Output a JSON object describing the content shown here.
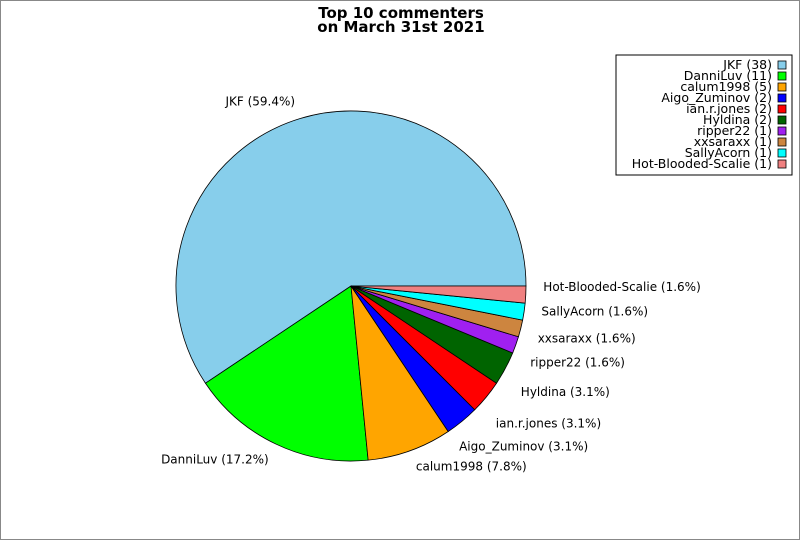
{
  "chart_data": {
    "type": "pie",
    "title_line1": "Top 10 commenters",
    "title_line2": "on March 31st 2021",
    "legend_position": "top-right",
    "slices": [
      {
        "name": "JKF",
        "value": 38,
        "percent_label": "JKF (59.4%)",
        "legend_label": "JKF (38)",
        "color": "#87CEEB"
      },
      {
        "name": "DanniLuv",
        "value": 11,
        "percent_label": "DanniLuv (17.2%)",
        "legend_label": "DanniLuv (11)",
        "color": "#00FF00"
      },
      {
        "name": "calum1998",
        "value": 5,
        "percent_label": "calum1998 (7.8%)",
        "legend_label": "calum1998 (5)",
        "color": "#FFA500"
      },
      {
        "name": "Aigo_Zuminov",
        "value": 2,
        "percent_label": "Aigo_Zuminov (3.1%)",
        "legend_label": "Aigo_Zuminov (2)",
        "color": "#0000FF"
      },
      {
        "name": "ian.r.jones",
        "value": 2,
        "percent_label": "ian.r.jones (3.1%)",
        "legend_label": "ian.r.jones (2)",
        "color": "#FF0000"
      },
      {
        "name": "Hyldina",
        "value": 2,
        "percent_label": "Hyldina (3.1%)",
        "legend_label": "Hyldina (2)",
        "color": "#006400"
      },
      {
        "name": "ripper22",
        "value": 1,
        "percent_label": "ripper22 (1.6%)",
        "legend_label": "ripper22 (1)",
        "color": "#A020F0"
      },
      {
        "name": "xxsaraxx",
        "value": 1,
        "percent_label": "xxsaraxx (1.6%)",
        "legend_label": "xxsaraxx (1)",
        "color": "#CD853F"
      },
      {
        "name": "SallyAcorn",
        "value": 1,
        "percent_label": "SallyAcorn (1.6%)",
        "legend_label": "SallyAcorn (1)",
        "color": "#00FFFF"
      },
      {
        "name": "Hot-Blooded-Scalie",
        "value": 1,
        "percent_label": "Hot-Blooded-Scalie (1.6%)",
        "legend_label": "Hot-Blooded-Scalie (1)",
        "color": "#F08080"
      }
    ]
  }
}
